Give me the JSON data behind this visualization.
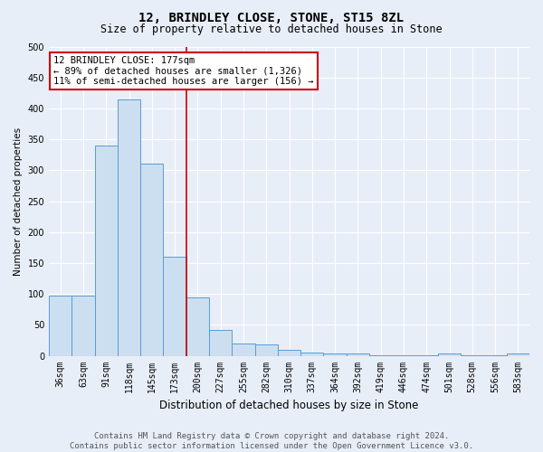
{
  "title1": "12, BRINDLEY CLOSE, STONE, ST15 8ZL",
  "title2": "Size of property relative to detached houses in Stone",
  "xlabel": "Distribution of detached houses by size in Stone",
  "ylabel": "Number of detached properties",
  "categories": [
    "36sqm",
    "63sqm",
    "91sqm",
    "118sqm",
    "145sqm",
    "173sqm",
    "200sqm",
    "227sqm",
    "255sqm",
    "282sqm",
    "310sqm",
    "337sqm",
    "364sqm",
    "392sqm",
    "419sqm",
    "446sqm",
    "474sqm",
    "501sqm",
    "528sqm",
    "556sqm",
    "583sqm"
  ],
  "values": [
    98,
    98,
    340,
    415,
    310,
    160,
    95,
    42,
    20,
    18,
    9,
    5,
    4,
    4,
    1,
    1,
    1,
    4,
    1,
    1,
    4
  ],
  "bar_color": "#ccdff0",
  "bar_edgecolor": "#5b9bd5",
  "vline_x": 5.5,
  "vline_color": "#cc0000",
  "annotation_text": "12 BRINDLEY CLOSE: 177sqm\n← 89% of detached houses are smaller (1,326)\n11% of semi-detached houses are larger (156) →",
  "annotation_box_color": "#ffffff",
  "annotation_box_edgecolor": "#cc0000",
  "ylim": [
    0,
    500
  ],
  "yticks": [
    0,
    50,
    100,
    150,
    200,
    250,
    300,
    350,
    400,
    450,
    500
  ],
  "footer1": "Contains HM Land Registry data © Crown copyright and database right 2024.",
  "footer2": "Contains public sector information licensed under the Open Government Licence v3.0.",
  "bg_color": "#e8eef8",
  "plot_bg_color": "#e8eef8",
  "title1_fontsize": 10,
  "title2_fontsize": 8.5,
  "xlabel_fontsize": 8.5,
  "ylabel_fontsize": 7.5,
  "tick_fontsize": 7,
  "footer_fontsize": 6.5,
  "annotation_fontsize": 7.5,
  "grid_color": "#ffffff"
}
